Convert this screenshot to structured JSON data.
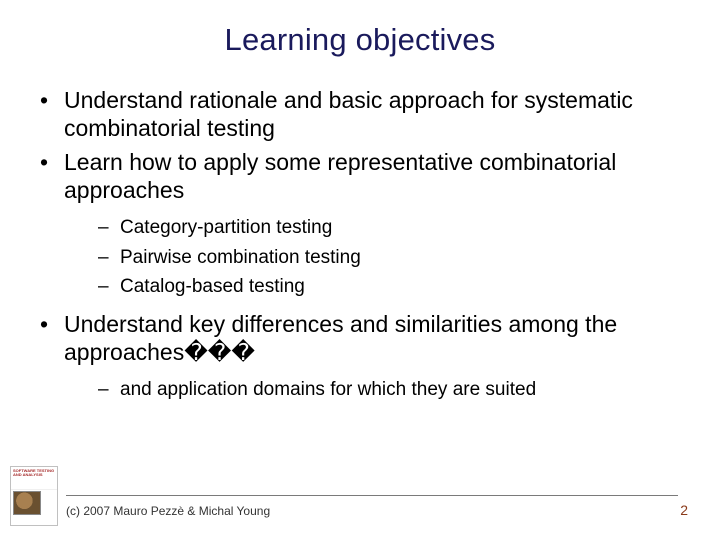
{
  "title": "Learning objectives",
  "title_color": "#1a1a5c",
  "body_color": "#000000",
  "background_color": "#ffffff",
  "title_fontsize": 31,
  "body_fontsize": 23,
  "sub_fontsize": 19,
  "bullets": {
    "b1": "Understand rationale and basic approach for systematic combinatorial testing",
    "b2": "Learn how to apply some representative combinatorial approaches",
    "b2_sub": {
      "s1": "Category-partition testing",
      "s2": "Pairwise combination testing",
      "s3": "Catalog-based testing"
    },
    "b3": "Understand key differences and similarities among the approaches���",
    "b3_sub": {
      "s1": "and application domains for which they are suited"
    }
  },
  "footer": {
    "copyright": "(c) 2007 Mauro Pezzè & Michal Young",
    "page_number": "2",
    "page_number_color": "#8a3a1a",
    "divider_color": "#7a7a7a"
  },
  "thumbnail": {
    "label": "SOFTWARE TESTING AND ANALYSIS"
  }
}
